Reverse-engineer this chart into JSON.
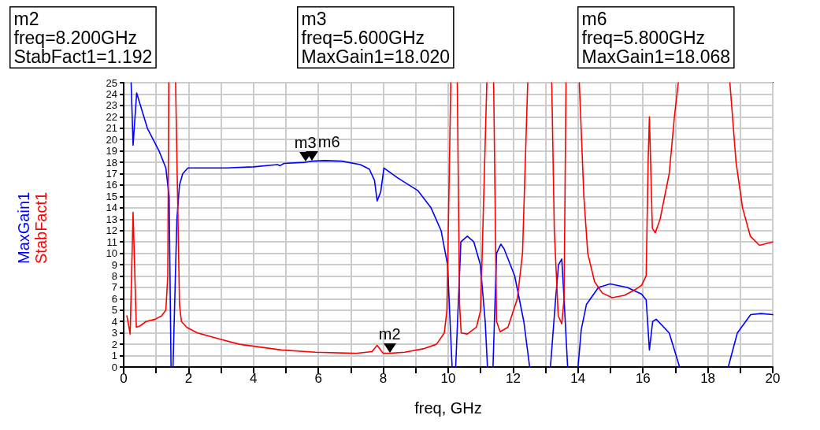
{
  "chart_data": {
    "type": "line",
    "xlabel": "freq, GHz",
    "annotations": [
      "m2\nfreq=8.200GHz\nStabFact1=1.192",
      "m3\nfreq=5.600GHz\nMaxGain1=18.020",
      "m6\nfreq=5.800GHz\nMaxGain1=18.068",
      {
        "text": "m2",
        "x": 8.2,
        "y": 1.192
      },
      {
        "text": "m3",
        "x": 5.6,
        "y": 18.02
      },
      {
        "text": "m6",
        "x": 5.8,
        "y": 18.068
      }
    ],
    "series": [
      {
        "name": "MaxGain1",
        "color": "#0000ff",
        "x": [
          0.23,
          0.29,
          0.4,
          0.73,
          1.09,
          1.3,
          1.4,
          1.46,
          1.49,
          1.52,
          1.64,
          1.72,
          1.82,
          1.98,
          3.16,
          4.0,
          4.74,
          4.82,
          4.94,
          5.6,
          5.8,
          6.2,
          6.72,
          7.29,
          7.57,
          7.73,
          7.81,
          7.92,
          8.02,
          8.46,
          9.07,
          9.47,
          9.78,
          9.98,
          10.12,
          10.18,
          10.23,
          10.39,
          10.59,
          10.79,
          10.99,
          11.14,
          11.21,
          11.3,
          11.38,
          11.49,
          11.62,
          11.72,
          12.05,
          12.33,
          12.51,
          12.8,
          13.15,
          13.31,
          13.4,
          13.5,
          13.57,
          13.68,
          13.85,
          14.0,
          14.1,
          14.26,
          14.63,
          14.99,
          15.52,
          15.96,
          16.1,
          16.2,
          16.3,
          16.41,
          16.81,
          17.13,
          17.9,
          18.63,
          18.91,
          19.32,
          19.64,
          20.0
        ],
        "values": [
          25,
          19.5,
          24.1,
          21,
          19,
          17.5,
          15,
          0,
          null,
          0,
          13,
          16,
          17,
          17.5,
          17.5,
          17.6,
          17.8,
          17.7,
          17.9,
          18.0,
          18.1,
          18.15,
          18.1,
          17.8,
          17.4,
          16.4,
          14.6,
          15.4,
          17.5,
          16.6,
          15.5,
          14,
          12,
          9,
          0,
          null,
          0,
          11,
          11.5,
          11,
          9,
          4,
          0,
          null,
          0,
          10,
          10.8,
          10.4,
          8,
          4,
          0,
          null,
          0,
          6,
          9,
          9.5,
          6,
          0,
          null,
          0,
          3.3,
          5.5,
          7,
          7.3,
          7,
          6.4,
          5.9,
          1.5,
          4,
          4.2,
          3,
          0,
          null,
          0,
          3,
          4.6,
          4.7,
          4.6
        ]
      },
      {
        "name": "StabFact1",
        "color": "#ff0000",
        "x": [
          0.1,
          0.2,
          0.29,
          0.39,
          0.5,
          0.69,
          0.97,
          1.17,
          1.3,
          1.36,
          1.39,
          1.5,
          1.6,
          1.72,
          1.78,
          1.94,
          2.27,
          2.91,
          3.56,
          4.86,
          5.91,
          7.13,
          7.65,
          7.81,
          8.0,
          8.2,
          8.66,
          9.23,
          9.64,
          9.88,
          9.96,
          10.08,
          10.18,
          10.28,
          10.35,
          10.4,
          10.59,
          10.87,
          11.0,
          11.19,
          11.3,
          11.4,
          11.49,
          11.6,
          11.84,
          12.13,
          12.29,
          12.45,
          12.8,
          13.19,
          13.27,
          13.39,
          13.5,
          13.57,
          13.63,
          13.8,
          14.04,
          14.18,
          14.3,
          14.51,
          14.75,
          15.05,
          15.43,
          15.76,
          15.96,
          16.1,
          16.16,
          16.2,
          16.29,
          16.38,
          16.53,
          16.81,
          16.97,
          17.09,
          17.9,
          18.68,
          18.87,
          19.07,
          19.31,
          19.59,
          20.0
        ],
        "values": [
          4.5,
          2.9,
          13.6,
          3.5,
          3.6,
          4,
          4.2,
          4.5,
          5,
          8,
          25,
          null,
          25,
          5.5,
          4,
          3.5,
          3,
          2.5,
          2,
          1.5,
          1.3,
          1.2,
          1.35,
          1.9,
          1.2,
          1.2,
          1.3,
          1.6,
          2,
          3,
          5,
          25,
          null,
          25,
          5.5,
          3,
          2.9,
          3.5,
          5,
          25,
          null,
          25,
          4,
          3.1,
          3.5,
          6,
          10,
          25,
          null,
          25,
          12,
          4.5,
          3.8,
          6,
          25,
          null,
          25,
          15,
          10,
          7.5,
          6.5,
          6.1,
          6.3,
          6.8,
          7.2,
          8,
          18,
          22,
          12.2,
          11.8,
          13,
          17,
          22,
          25,
          null,
          25,
          18,
          14,
          11.5,
          10.7,
          11
        ]
      }
    ],
    "xlim": [
      0,
      20
    ],
    "xticks": [
      0,
      {
        "value": 1,
        "label": null
      },
      2,
      {
        "value": 3,
        "label": null
      },
      4,
      {
        "value": 5,
        "label": null
      },
      6,
      {
        "value": 7,
        "label": null
      },
      8,
      {
        "value": 9,
        "label": null
      },
      10,
      {
        "value": 11,
        "label": null
      },
      12,
      {
        "value": 13,
        "label": null
      },
      14,
      {
        "value": 15,
        "label": null
      },
      16,
      {
        "value": 17,
        "label": null
      },
      18,
      {
        "value": 19,
        "label": null
      },
      20
    ],
    "ylim": [
      0,
      25
    ],
    "yticks": [
      0,
      1,
      2,
      3,
      4,
      5,
      6,
      7,
      8,
      9,
      10,
      11,
      12,
      13,
      14,
      15,
      16,
      17,
      18,
      19,
      20,
      21,
      22,
      23,
      24,
      25
    ],
    "grid": true,
    "legend": "left",
    "marker": "none",
    "line_style": "solid"
  }
}
